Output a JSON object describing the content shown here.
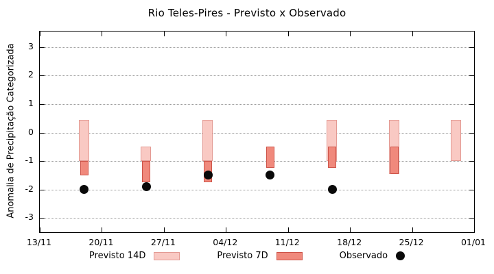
{
  "colors": {
    "p14_fill": "#f9c9c3",
    "p14_border": "#e39a93",
    "p7_fill": "#f0897c",
    "p7_border": "#cd5348",
    "obs": "#0a0a0a",
    "grid": "#9a9a9a"
  },
  "chart_data": {
    "type": "bar",
    "title": "Rio Teles-Pires - Previsto x Observado",
    "xlabel": "",
    "ylabel": "Anomalia de Precipitação Categorizada",
    "ylim": [
      -3.5,
      3.55
    ],
    "x_days_range": [
      0,
      49
    ],
    "grid": true,
    "legend_position": "bottom",
    "x_ticks": [
      {
        "day": 0,
        "label": "13/11"
      },
      {
        "day": 7,
        "label": "20/11"
      },
      {
        "day": 14,
        "label": "27/11"
      },
      {
        "day": 21,
        "label": "04/12"
      },
      {
        "day": 28,
        "label": "11/12"
      },
      {
        "day": 35,
        "label": "18/12"
      },
      {
        "day": 42,
        "label": "25/12"
      },
      {
        "day": 49,
        "label": "01/01"
      }
    ],
    "y_ticks": [
      -3,
      -2,
      -1,
      0,
      1,
      2,
      3
    ],
    "legend": [
      {
        "label": "Previsto 14D",
        "series": "previsto_14d"
      },
      {
        "label": "Previsto 7D",
        "series": "previsto_7d"
      },
      {
        "label": "Observado",
        "series": "observado"
      }
    ],
    "clusters": [
      {
        "x_day": 5,
        "previsto_14d": [
          -1.0,
          0.45
        ],
        "previsto_7d": [
          -1.5,
          -1.0
        ],
        "observado": -2.0
      },
      {
        "x_day": 12,
        "previsto_14d": [
          -1.0,
          -0.5
        ],
        "previsto_7d": [
          -1.75,
          -1.0
        ],
        "observado": -1.9
      },
      {
        "x_day": 19,
        "previsto_14d": [
          -1.0,
          0.45
        ],
        "previsto_7d": [
          -1.75,
          -1.0
        ],
        "observado": -1.5
      },
      {
        "x_day": 26,
        "previsto_14d": null,
        "previsto_7d": [
          -1.25,
          -0.5
        ],
        "observado": -1.5
      },
      {
        "x_day": 33,
        "previsto_14d": [
          -1.0,
          0.45
        ],
        "previsto_7d": [
          -1.25,
          -0.5
        ],
        "observado": -2.0
      },
      {
        "x_day": 40,
        "previsto_14d": [
          -1.45,
          0.45
        ],
        "previsto_7d": [
          -1.45,
          -0.5
        ],
        "observado": null
      },
      {
        "x_day": 47,
        "previsto_14d": [
          -1.0,
          0.45
        ],
        "previsto_7d": null,
        "observado": null
      }
    ]
  }
}
